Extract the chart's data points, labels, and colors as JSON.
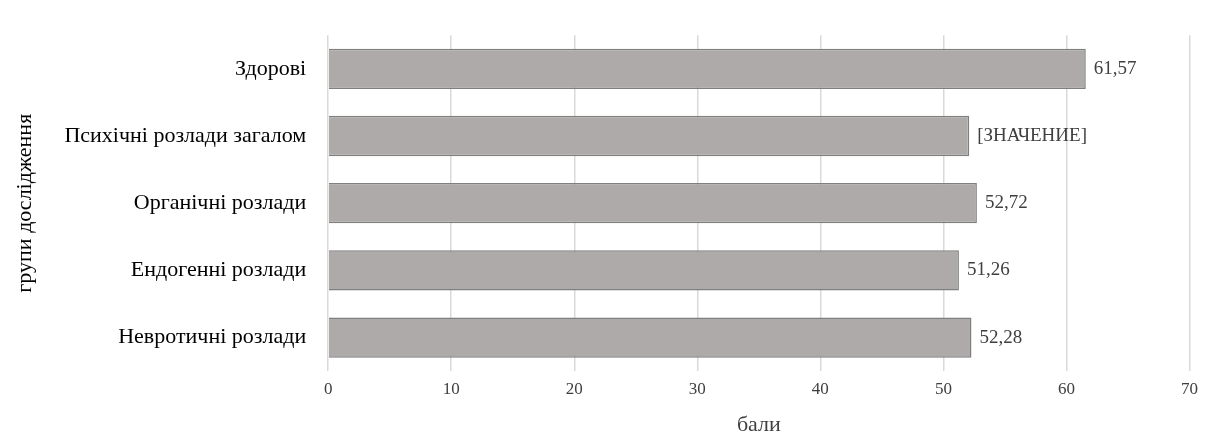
{
  "chart_data": {
    "type": "bar",
    "orientation": "horizontal",
    "xlabel": "бали",
    "ylabel": "групи дослідження",
    "categories": [
      "Здорові",
      "Психічні розлади загалом",
      "Органічні розлади",
      "Ендогенні розлади",
      "Невротичні розлади"
    ],
    "values": [
      61.57,
      52.1,
      52.72,
      51.26,
      52.28
    ],
    "value_labels": [
      "61,57",
      "[ЗНАЧЕНИЕ]",
      "52,72",
      "51,26",
      "52,28"
    ],
    "color": "#aeaaaa",
    "xlim": [
      0,
      70
    ],
    "xticks": [
      0,
      10,
      20,
      30,
      40,
      50,
      60,
      70
    ],
    "grid": "x",
    "legend": false
  }
}
